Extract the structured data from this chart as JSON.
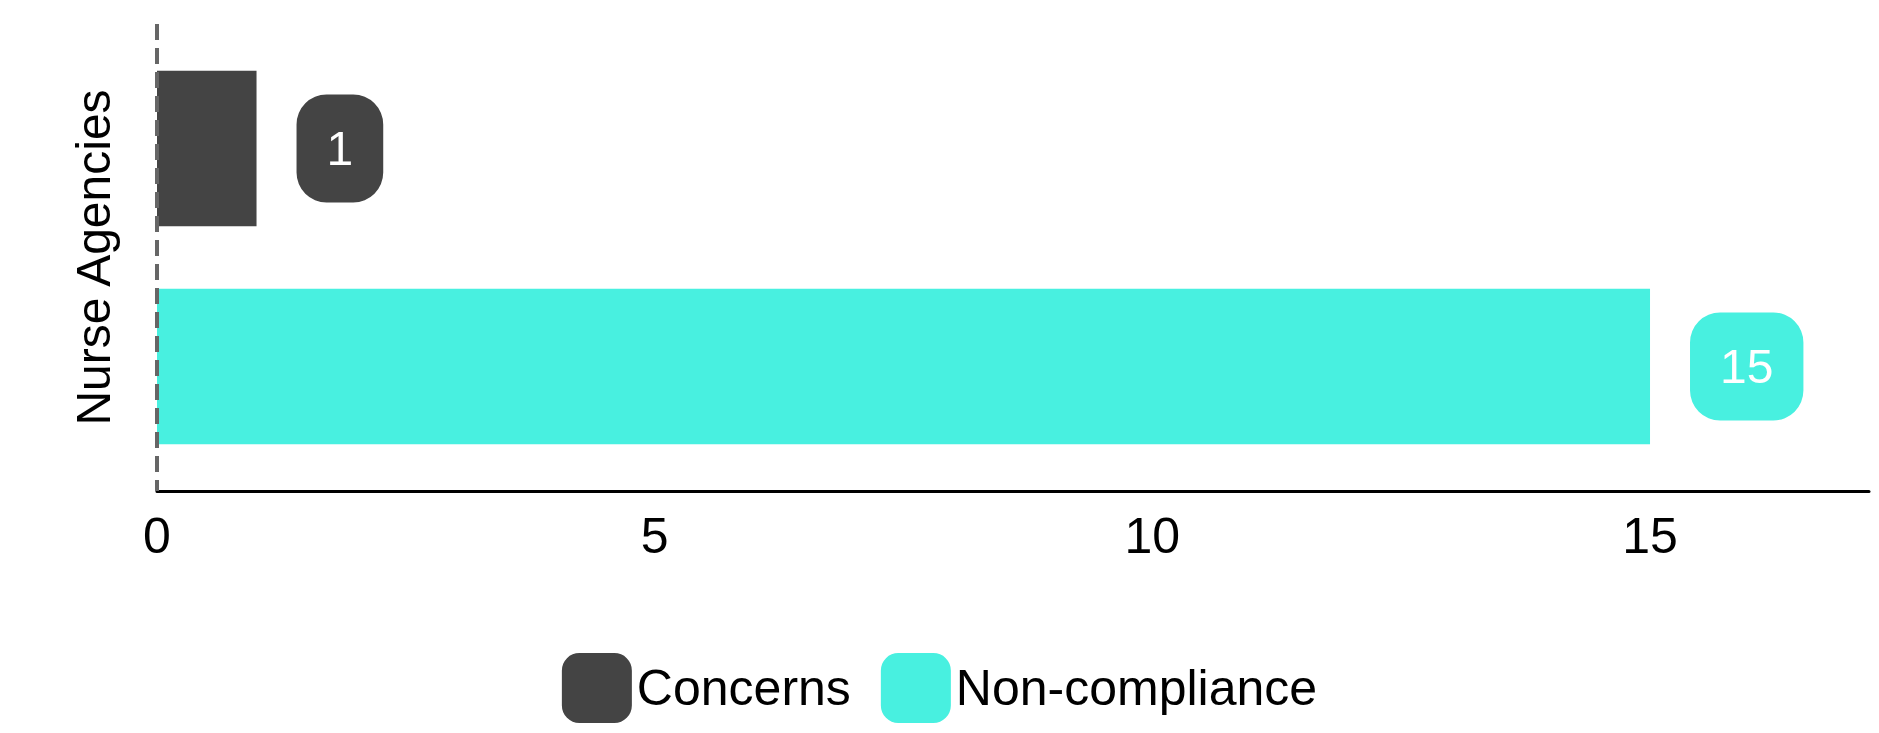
{
  "chart_data": {
    "type": "bar",
    "orientation": "horizontal",
    "categories": [
      "Nurse Agencies"
    ],
    "series": [
      {
        "name": "Concerns",
        "color": "#444444",
        "values": [
          1
        ]
      },
      {
        "name": "Non-compliance",
        "color": "#48f0e0",
        "values": [
          15
        ]
      }
    ],
    "xlim": [
      0,
      17.2
    ],
    "xticks": [
      0,
      5,
      10,
      15
    ],
    "data_labels": true,
    "legend": "bottom",
    "grid": false,
    "ref_lines": [
      {
        "axis": "x",
        "value": 0,
        "color": "#666666",
        "line_style": "dashed"
      }
    ]
  }
}
